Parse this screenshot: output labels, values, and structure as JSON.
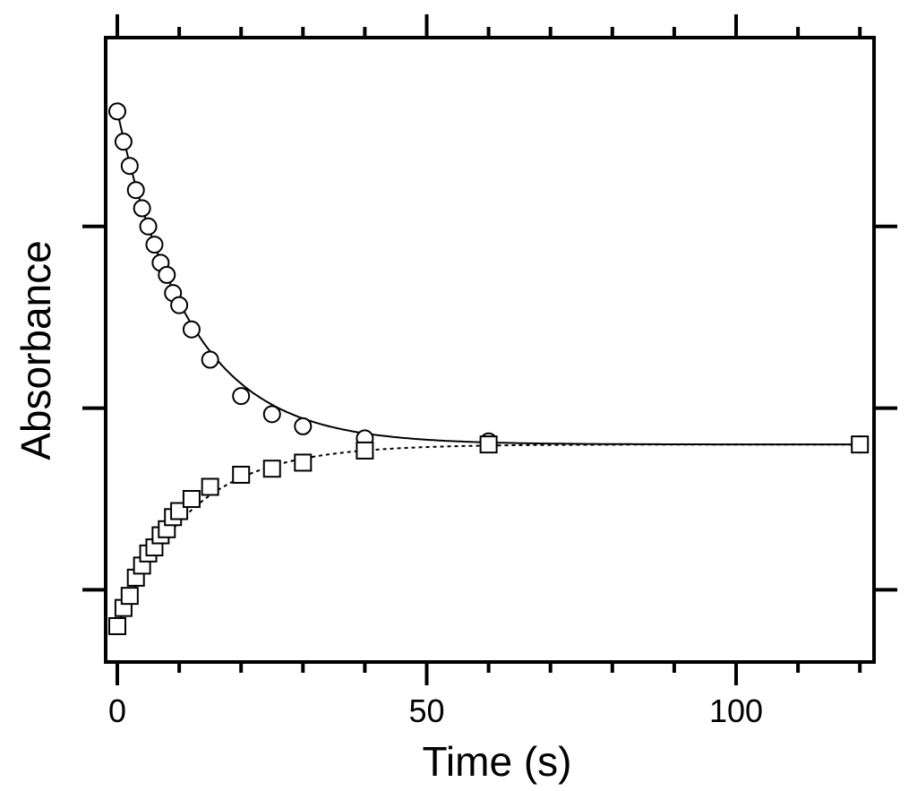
{
  "chart_data": {
    "type": "scatter",
    "title": "",
    "xlabel": "Time (s)",
    "ylabel": "Absorbance",
    "xlim": [
      -2,
      123
    ],
    "ylim": [
      0,
      1
    ],
    "x_ticks": [
      0,
      50,
      100
    ],
    "x_tick_labels": [
      "0",
      "50",
      "100"
    ],
    "y_tick_labels_shown": false,
    "grid": false,
    "legend": "none",
    "series": [
      {
        "marker": "circle",
        "fit_line": "solid",
        "x": [
          0,
          1,
          2,
          3,
          4,
          5,
          6,
          7,
          8,
          9,
          10,
          12,
          15,
          20,
          25,
          30,
          40,
          60,
          120
        ],
        "y": [
          0.89,
          0.84,
          0.8,
          0.76,
          0.73,
          0.7,
          0.67,
          0.64,
          0.62,
          0.59,
          0.57,
          0.53,
          0.48,
          0.42,
          0.39,
          0.37,
          0.35,
          0.345,
          0.34
        ]
      },
      {
        "marker": "square",
        "fit_line": "dashed",
        "x": [
          0,
          1,
          2,
          3,
          4,
          5,
          6,
          7,
          8,
          9,
          10,
          12,
          15,
          20,
          25,
          30,
          40,
          60,
          120
        ],
        "y": [
          0.04,
          0.07,
          0.09,
          0.12,
          0.14,
          0.16,
          0.17,
          0.19,
          0.2,
          0.22,
          0.23,
          0.25,
          0.27,
          0.29,
          0.3,
          0.31,
          0.33,
          0.34,
          0.34
        ]
      }
    ]
  }
}
